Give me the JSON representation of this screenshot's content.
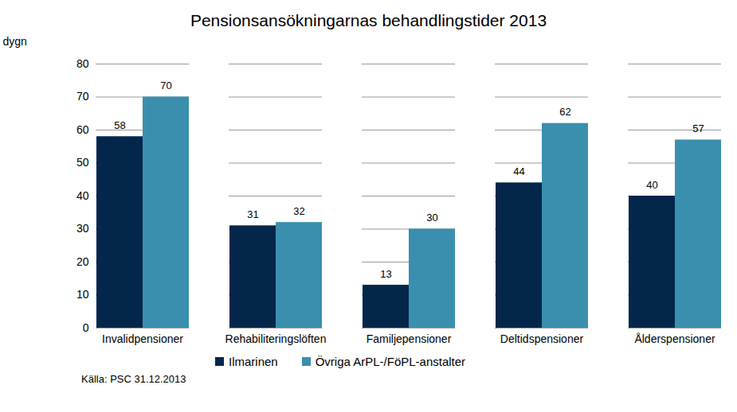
{
  "chart_data": {
    "type": "bar",
    "title": "Pensionsansökningarnas behandlingstider 2013",
    "ylabel": "dygn",
    "categories": [
      "Invalidpensioner",
      "Rehabiliteringslöften",
      "Familjepensioner",
      "Deltidspensioner",
      "Ålderspensioner"
    ],
    "series": [
      {
        "name": "Ilmarinen",
        "color": "#03264a",
        "values": [
          58,
          31,
          13,
          44,
          40
        ]
      },
      {
        "name": "Övriga ArPL-/FöPL-anstalter",
        "color": "#3a8fae",
        "values": [
          70,
          32,
          30,
          62,
          57
        ]
      }
    ],
    "ylim": [
      0,
      80
    ],
    "yticks": [
      0,
      10,
      20,
      30,
      40,
      50,
      60,
      70,
      80
    ],
    "grid": true,
    "data_labels": true,
    "legend": "bottom",
    "source": "Källa: PSC 31.12.2013"
  }
}
